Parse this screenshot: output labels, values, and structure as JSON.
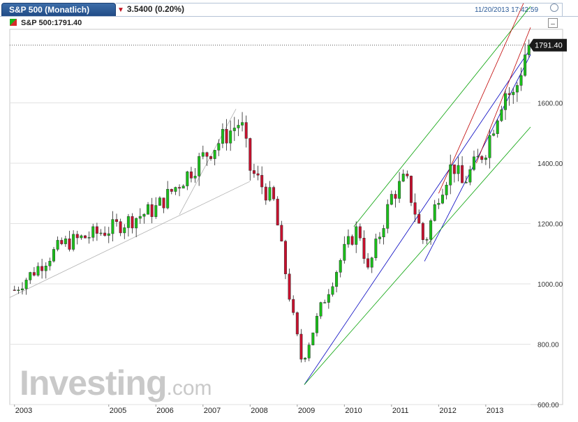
{
  "header": {
    "tab_title": "S&P 500 (Monatlich)",
    "change": "3.5400 (0.20%)",
    "change_direction": "down",
    "timestamp": "11/20/2013 17:42:59",
    "legend": "S&P 500:1791.40"
  },
  "watermark": {
    "main": "Investing",
    "suffix": ".com"
  },
  "colors": {
    "up": "#19c019",
    "down": "#c8102e",
    "accent": "#1f4a85",
    "price_tag": "#1a1a1a"
  },
  "chart_data": {
    "type": "candlestick",
    "title": "S&P 500 (Monatlich)",
    "interval": "monthly",
    "ylim": [
      600,
      1830
    ],
    "y_ticks": [
      "600.00",
      "800.00",
      "1000.00",
      "1200.00",
      "1400.00",
      "1600.00"
    ],
    "x_ticks": [
      "2003",
      "2005",
      "2006",
      "2007",
      "2008",
      "2009",
      "2010",
      "2011",
      "2012",
      "2013"
    ],
    "last_price_label": "1791.40",
    "last_price": 1791.4,
    "grid": "horizontal",
    "anchors": [
      {
        "year": 2003,
        "close": 980
      },
      {
        "year": 2004,
        "close": 1130
      },
      {
        "year": 2005,
        "close": 1180
      },
      {
        "year": 2006,
        "close": 1250
      },
      {
        "year": 2007,
        "close": 1420
      },
      {
        "year": 2007.8,
        "close": 1540
      },
      {
        "year": 2008,
        "close": 1380
      },
      {
        "year": 2008.5,
        "close": 1270
      },
      {
        "year": 2008.9,
        "close": 900
      },
      {
        "year": 2009.1,
        "close": 740
      },
      {
        "year": 2009.5,
        "close": 920
      },
      {
        "year": 2010,
        "close": 1110
      },
      {
        "year": 2010.3,
        "close": 1190
      },
      {
        "year": 2010.5,
        "close": 1040
      },
      {
        "year": 2011,
        "close": 1290
      },
      {
        "year": 2011.3,
        "close": 1350
      },
      {
        "year": 2011.7,
        "close": 1130
      },
      {
        "year": 2012,
        "close": 1300
      },
      {
        "year": 2012.3,
        "close": 1400
      },
      {
        "year": 2012.5,
        "close": 1330
      },
      {
        "year": 2013,
        "close": 1450
      },
      {
        "year": 2013.4,
        "close": 1640
      },
      {
        "year": 2013.6,
        "close": 1620
      },
      {
        "year": 2013.88,
        "close": 1791.4
      }
    ],
    "trendlines": [
      {
        "color": "#b0b0b0",
        "from": [
          2002.9,
          955
        ],
        "to": [
          2008,
          1340
        ]
      },
      {
        "color": "#b0b0b0",
        "from": [
          2006.5,
          1230
        ],
        "to": [
          2007.7,
          1580
        ]
      },
      {
        "color": "#0000c0",
        "from": [
          2009.15,
          666
        ],
        "to": [
          2013.95,
          1780
        ]
      },
      {
        "color": "#0000c0",
        "from": [
          2011.7,
          1075
        ],
        "to": [
          2013.95,
          1760
        ]
      },
      {
        "color": "#00a000",
        "from": [
          2009.15,
          666
        ],
        "to": [
          2013.95,
          1520
        ]
      },
      {
        "color": "#00a000",
        "from": [
          2010.2,
          1190
        ],
        "to": [
          2013.95,
          1920
        ]
      },
      {
        "color": "#c00000",
        "from": [
          2012,
          1300
        ],
        "to": [
          2013.8,
          1930
        ]
      },
      {
        "color": "#c00000",
        "from": [
          2012.8,
          1400
        ],
        "to": [
          2013.95,
          1850
        ]
      }
    ]
  }
}
